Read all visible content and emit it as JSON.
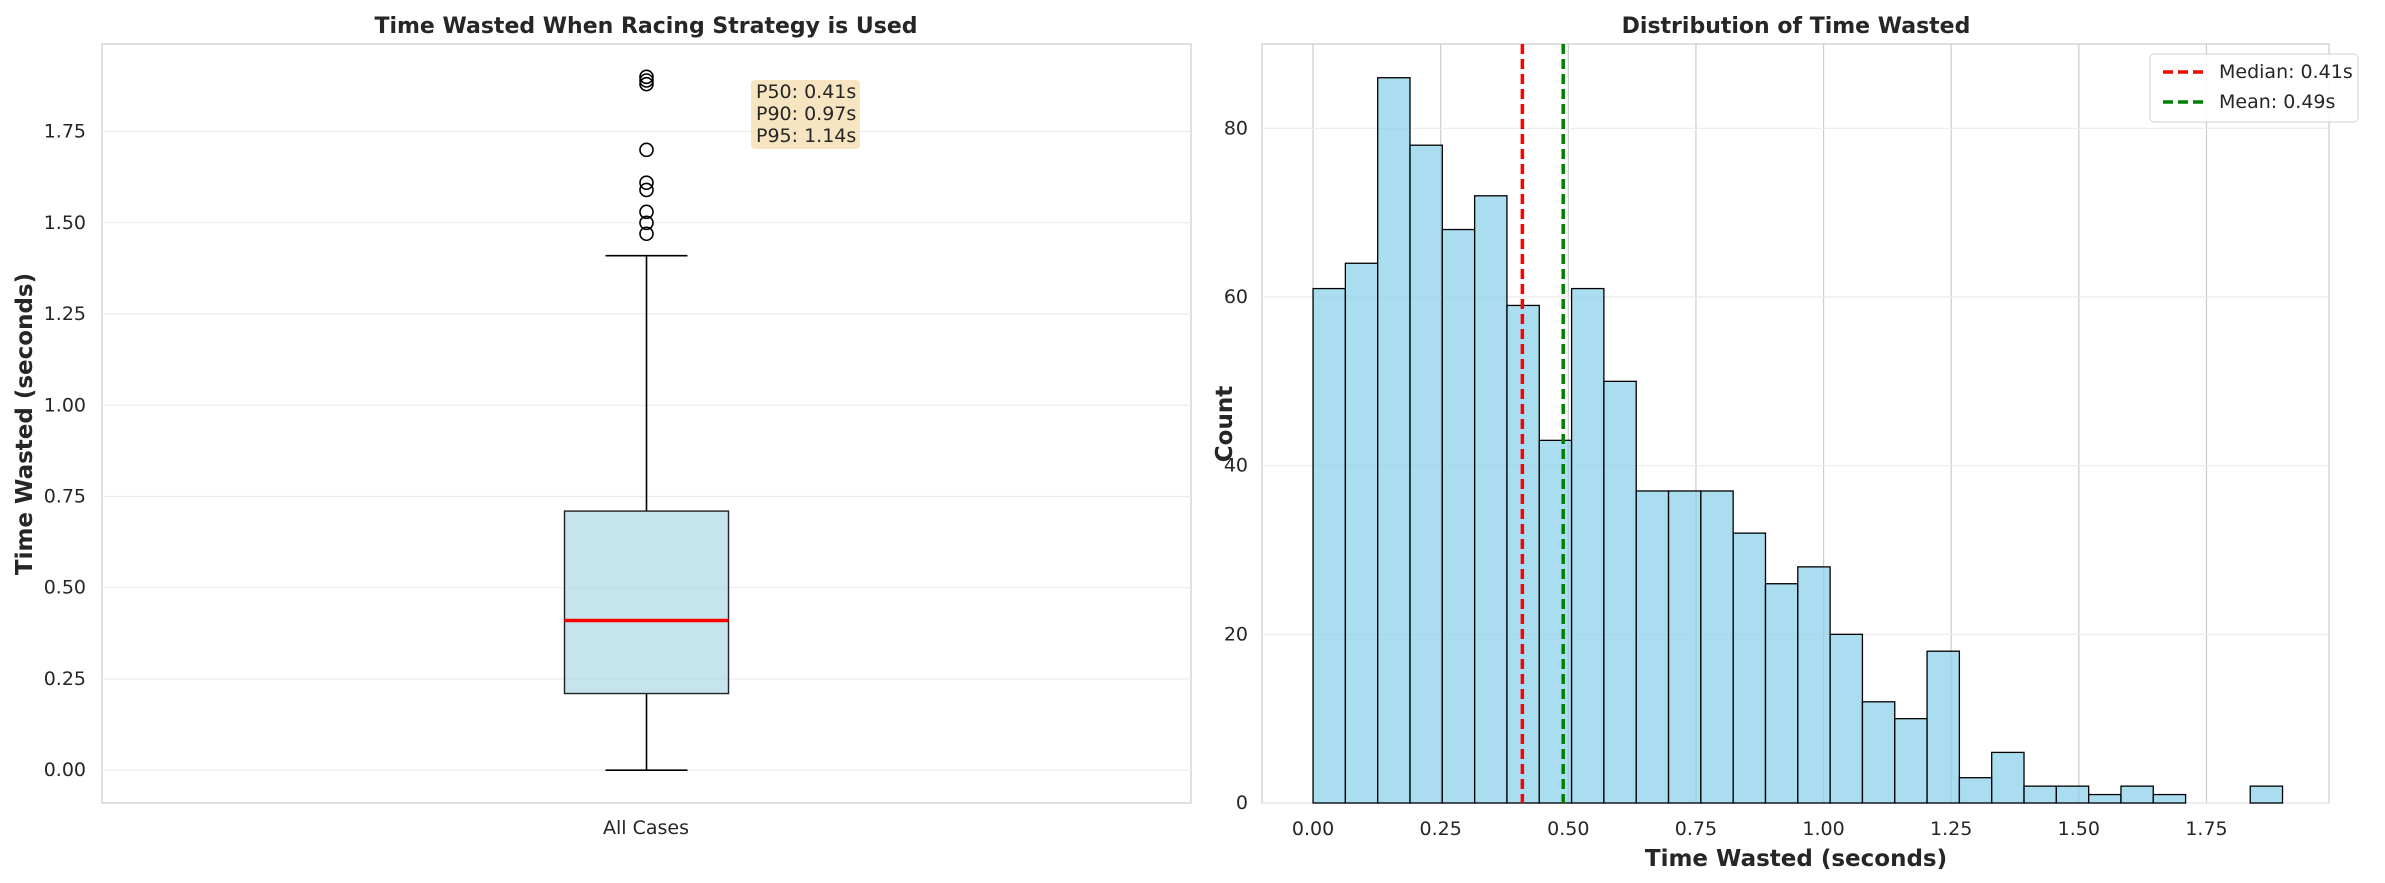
{
  "chart_data": [
    {
      "type": "box",
      "title": "Time Wasted When Racing Strategy is Used",
      "xlabel": "",
      "ylabel": "Time Wasted (seconds)",
      "categories": [
        "All Cases"
      ],
      "ylim": [
        -0.09,
        1.99
      ],
      "yticks": [
        "0.00",
        "0.25",
        "0.50",
        "0.75",
        "1.00",
        "1.25",
        "1.50",
        "1.75"
      ],
      "ytick_values": [
        0.0,
        0.25,
        0.5,
        0.75,
        1.0,
        1.25,
        1.5,
        1.75
      ],
      "grid": true,
      "box": {
        "whisker_low": 0.0,
        "q1": 0.21,
        "median": 0.41,
        "q3": 0.71,
        "whisker_high": 1.41,
        "outliers": [
          1.47,
          1.5,
          1.53,
          1.59,
          1.61,
          1.7,
          1.88,
          1.89,
          1.9
        ]
      },
      "colors": {
        "box_fill": "#add8e6",
        "median": "#ff0000",
        "outlier": "#000000"
      },
      "annotation": [
        "P50: 0.41s",
        "P90: 0.97s",
        "P95: 1.14s"
      ],
      "annotation_color": "#f5deb3"
    },
    {
      "type": "histogram",
      "title": "Distribution of Time Wasted",
      "xlabel": "Time Wasted (seconds)",
      "ylabel": "Count",
      "xlim": [
        -0.1,
        1.99
      ],
      "ylim": [
        0,
        90
      ],
      "xticks": [
        "0.00",
        "0.25",
        "0.50",
        "0.75",
        "1.00",
        "1.25",
        "1.50",
        "1.75"
      ],
      "xtick_values": [
        0.0,
        0.25,
        0.5,
        0.75,
        1.0,
        1.25,
        1.5,
        1.75
      ],
      "yticks": [
        "0",
        "20",
        "40",
        "60",
        "80"
      ],
      "ytick_values": [
        0,
        20,
        40,
        60,
        80
      ],
      "grid": true,
      "bin_start": 0.0,
      "bin_width": 0.0633,
      "counts": [
        61,
        64,
        86,
        78,
        68,
        72,
        59,
        43,
        61,
        50,
        37,
        37,
        37,
        32,
        26,
        28,
        20,
        12,
        10,
        18,
        3,
        6,
        2,
        2,
        1,
        2,
        1,
        0,
        0,
        2
      ],
      "colors": {
        "bar": "#87ceeb",
        "edge": "#000000"
      },
      "reference_lines": [
        {
          "label": "Median: 0.41s",
          "value": 0.41,
          "color": "#ff0000"
        },
        {
          "label": "Mean: 0.49s",
          "value": 0.49,
          "color": "#008000"
        }
      ],
      "legend_position": "top-right"
    }
  ]
}
